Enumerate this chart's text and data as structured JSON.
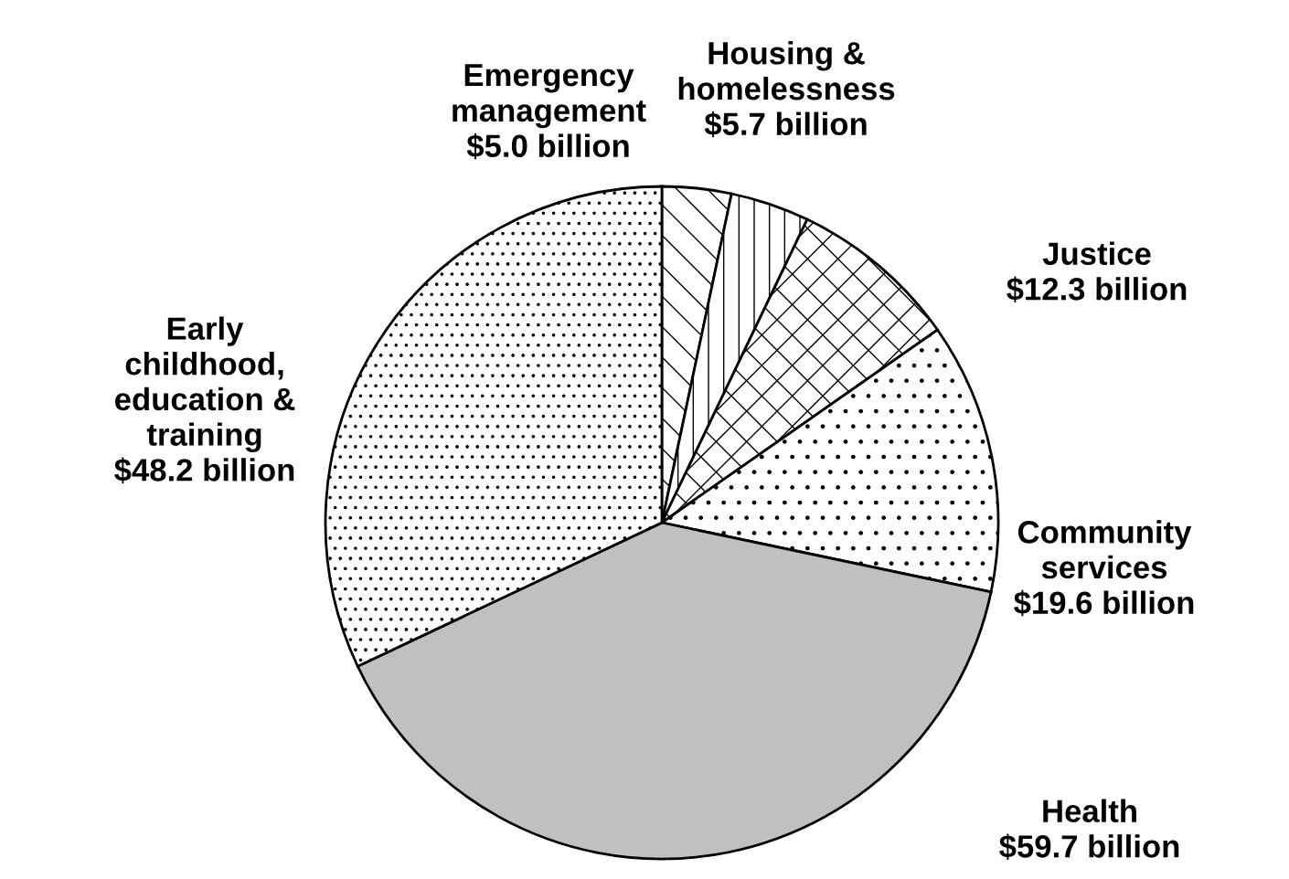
{
  "chart_data": {
    "type": "pie",
    "categories": [
      "Emergency\nmanagement",
      "Housing &\nhomelessness",
      "Justice",
      "Community\nservices",
      "Health",
      "Early\nchildhood,\neducation &\ntraining"
    ],
    "values": [
      5.0,
      5.7,
      12.3,
      19.6,
      59.7,
      48.2
    ],
    "value_labels": [
      "$5.0 billion",
      "$5.7 billion",
      "$12.3 billion",
      "$19.6 billion",
      "$59.7 billion",
      "$48.2 billion"
    ],
    "colors": [
      "#ffffff",
      "#ffffff",
      "#ffffff",
      "#ffffff",
      "#c0c0c0",
      "#ffffff"
    ]
  }
}
